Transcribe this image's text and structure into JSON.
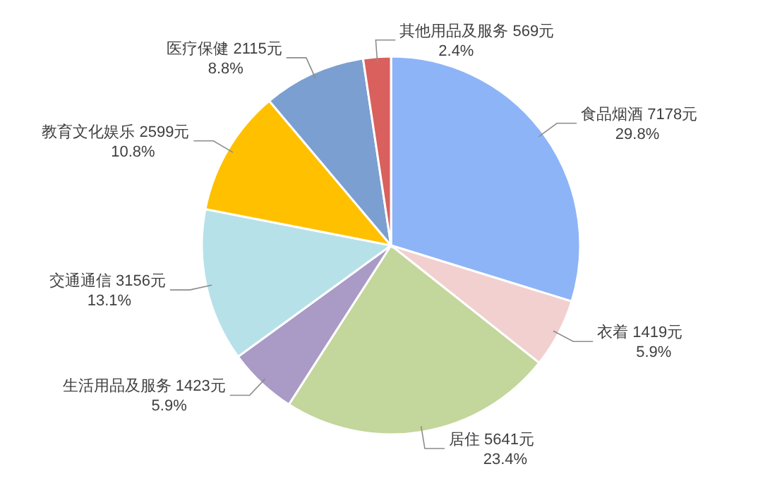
{
  "chart_data": {
    "type": "pie",
    "categories": [
      "食品烟酒",
      "衣着",
      "居住",
      "生活用品及服务",
      "交通通信",
      "教育文化娱乐",
      "医疗保健",
      "其他用品及服务"
    ],
    "values": [
      7178,
      1419,
      5641,
      1423,
      3156,
      2599,
      2115,
      569
    ],
    "value_labels": [
      "7178元\n29.8%",
      "1419元\n5.9%",
      "5641元\n23.4%",
      "1423元\n5.9%",
      "3156元\n13.1%",
      "2599元\n10.8%",
      "2115元\n8.8%",
      "569元\n2.4%"
    ],
    "colors": [
      "#8eb4f8",
      "#f2d0d0",
      "#c3d69b",
      "#a99ac6",
      "#b7e1e9",
      "#ffc000",
      "#7b9fd0",
      "#d9605c"
    ]
  }
}
